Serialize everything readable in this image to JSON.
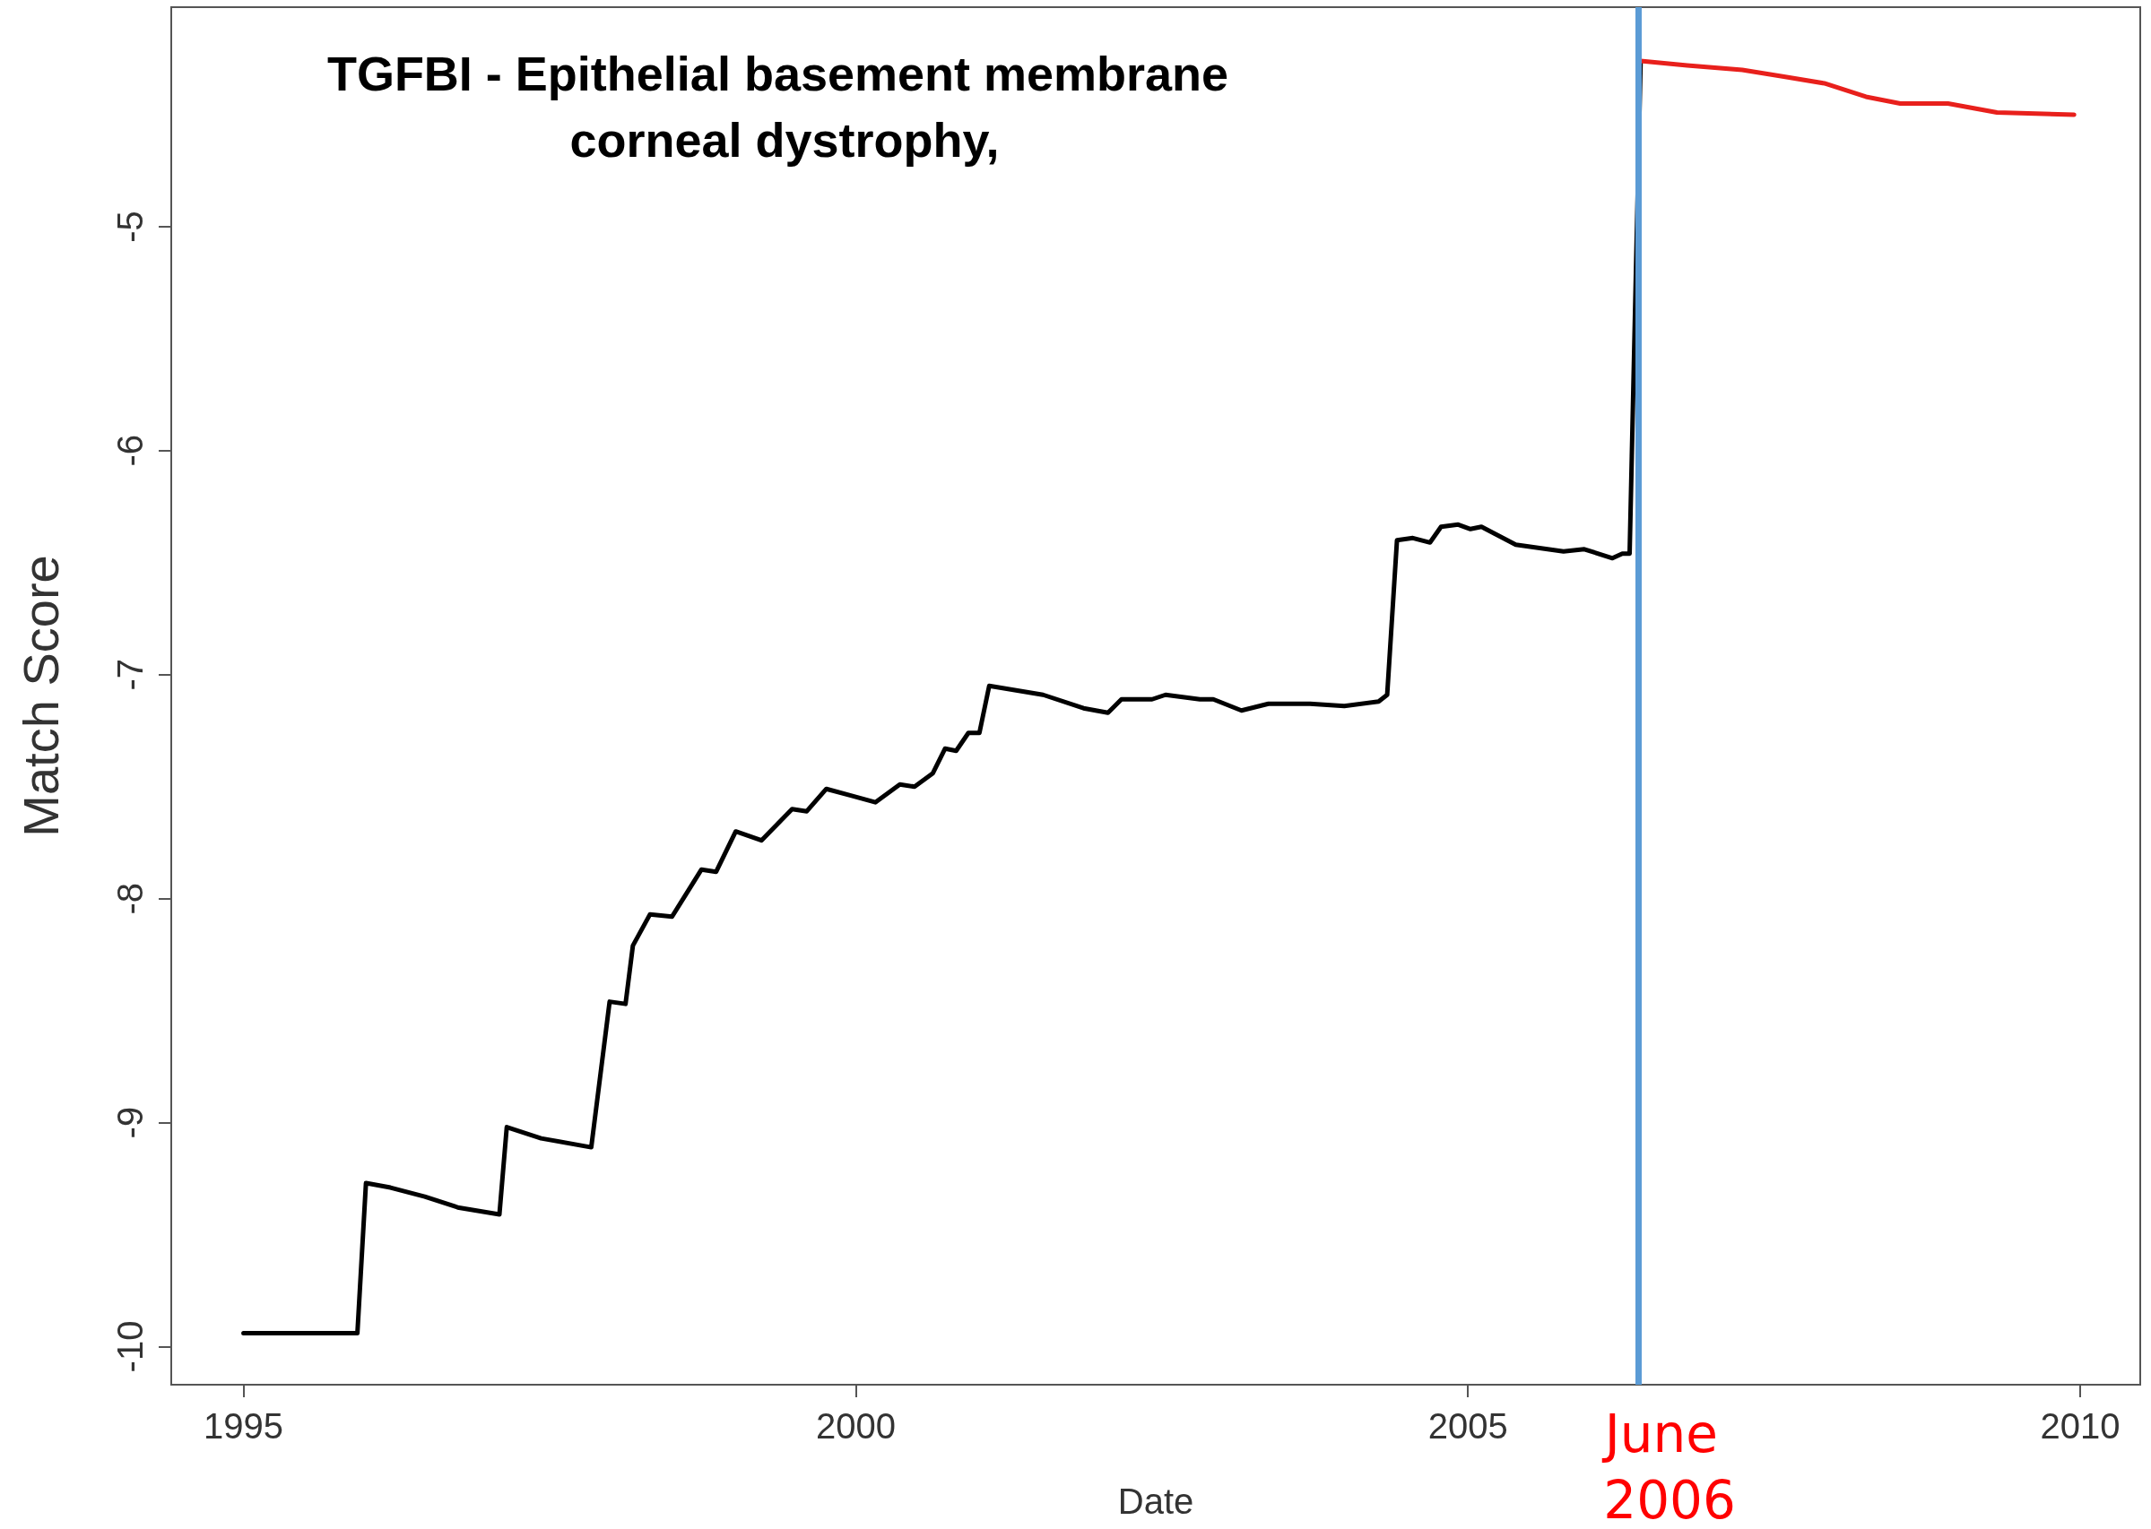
{
  "chart_data": {
    "type": "line",
    "title": "TGFBI - Epithelial basement membrane corneal dystrophy,",
    "xlabel": "Date",
    "ylabel": "Match Score",
    "xlim": [
      1994.41,
      2010.49
    ],
    "xticks": [
      1995,
      2000,
      2005,
      2010
    ],
    "ylim": [
      -10.17,
      -4.02
    ],
    "yticks": [
      -10,
      -9,
      -8,
      -7,
      -6,
      -5
    ],
    "grid": false,
    "marker": "none",
    "line_style": "solid",
    "series": [
      {
        "color": "#000000",
        "x": [
          1995,
          1995.93,
          1996.0,
          1996.2,
          1996.48,
          1996.76,
          1997.09,
          1997.15,
          1997.43,
          1997.84,
          1997.99,
          1998.12,
          1998.18,
          1998.32,
          1998.5,
          1998.74,
          1998.86,
          1999.02,
          1999.23,
          1999.48,
          1999.6,
          1999.76,
          1999.96,
          2000.16,
          2000.36,
          2000.48,
          2000.63,
          2000.73,
          2000.82,
          2000.92,
          2001.01,
          2001.09,
          2001.53,
          2001.86,
          2002.06,
          2002.17,
          2002.42,
          2002.53,
          2002.81,
          2002.92,
          2003.15,
          2003.37,
          2003.71,
          2003.99,
          2004.27,
          2004.34,
          2004.42,
          2004.55,
          2004.69,
          2004.78,
          2004.92,
          2005.02,
          2005.11,
          2005.39,
          2005.78,
          2005.95,
          2006.18,
          2006.26,
          2006.32,
          2006.41
        ],
        "values": [
          -9.94,
          -9.94,
          -9.27,
          -9.29,
          -9.33,
          -9.38,
          -9.41,
          -9.02,
          -9.07,
          -9.11,
          -8.46,
          -8.47,
          -8.21,
          -8.07,
          -8.08,
          -7.87,
          -7.88,
          -7.7,
          -7.74,
          -7.6,
          -7.61,
          -7.51,
          -7.54,
          -7.57,
          -7.49,
          -7.5,
          -7.44,
          -7.33,
          -7.34,
          -7.26,
          -7.26,
          -7.05,
          -7.09,
          -7.15,
          -7.17,
          -7.11,
          -7.11,
          -7.09,
          -7.11,
          -7.11,
          -7.16,
          -7.13,
          -7.13,
          -7.14,
          -7.12,
          -7.09,
          -6.4,
          -6.39,
          -6.41,
          -6.34,
          -6.33,
          -6.35,
          -6.34,
          -6.42,
          -6.45,
          -6.44,
          -6.48,
          -6.46,
          -6.46,
          -4.26
        ]
      },
      {
        "color": "#e8201c",
        "x": [
          2006.41,
          2006.79,
          2007.24,
          2007.58,
          2007.91,
          2008.25,
          2008.53,
          2008.92,
          2009.32,
          2009.95
        ],
        "values": [
          -4.26,
          -4.28,
          -4.3,
          -4.33,
          -4.36,
          -4.42,
          -4.45,
          -4.45,
          -4.49,
          -4.5
        ]
      }
    ],
    "ref_lines": [
      {
        "axis": "x",
        "value": 2006.39,
        "label": "June 2006",
        "color": "#5b9bd5"
      }
    ]
  }
}
